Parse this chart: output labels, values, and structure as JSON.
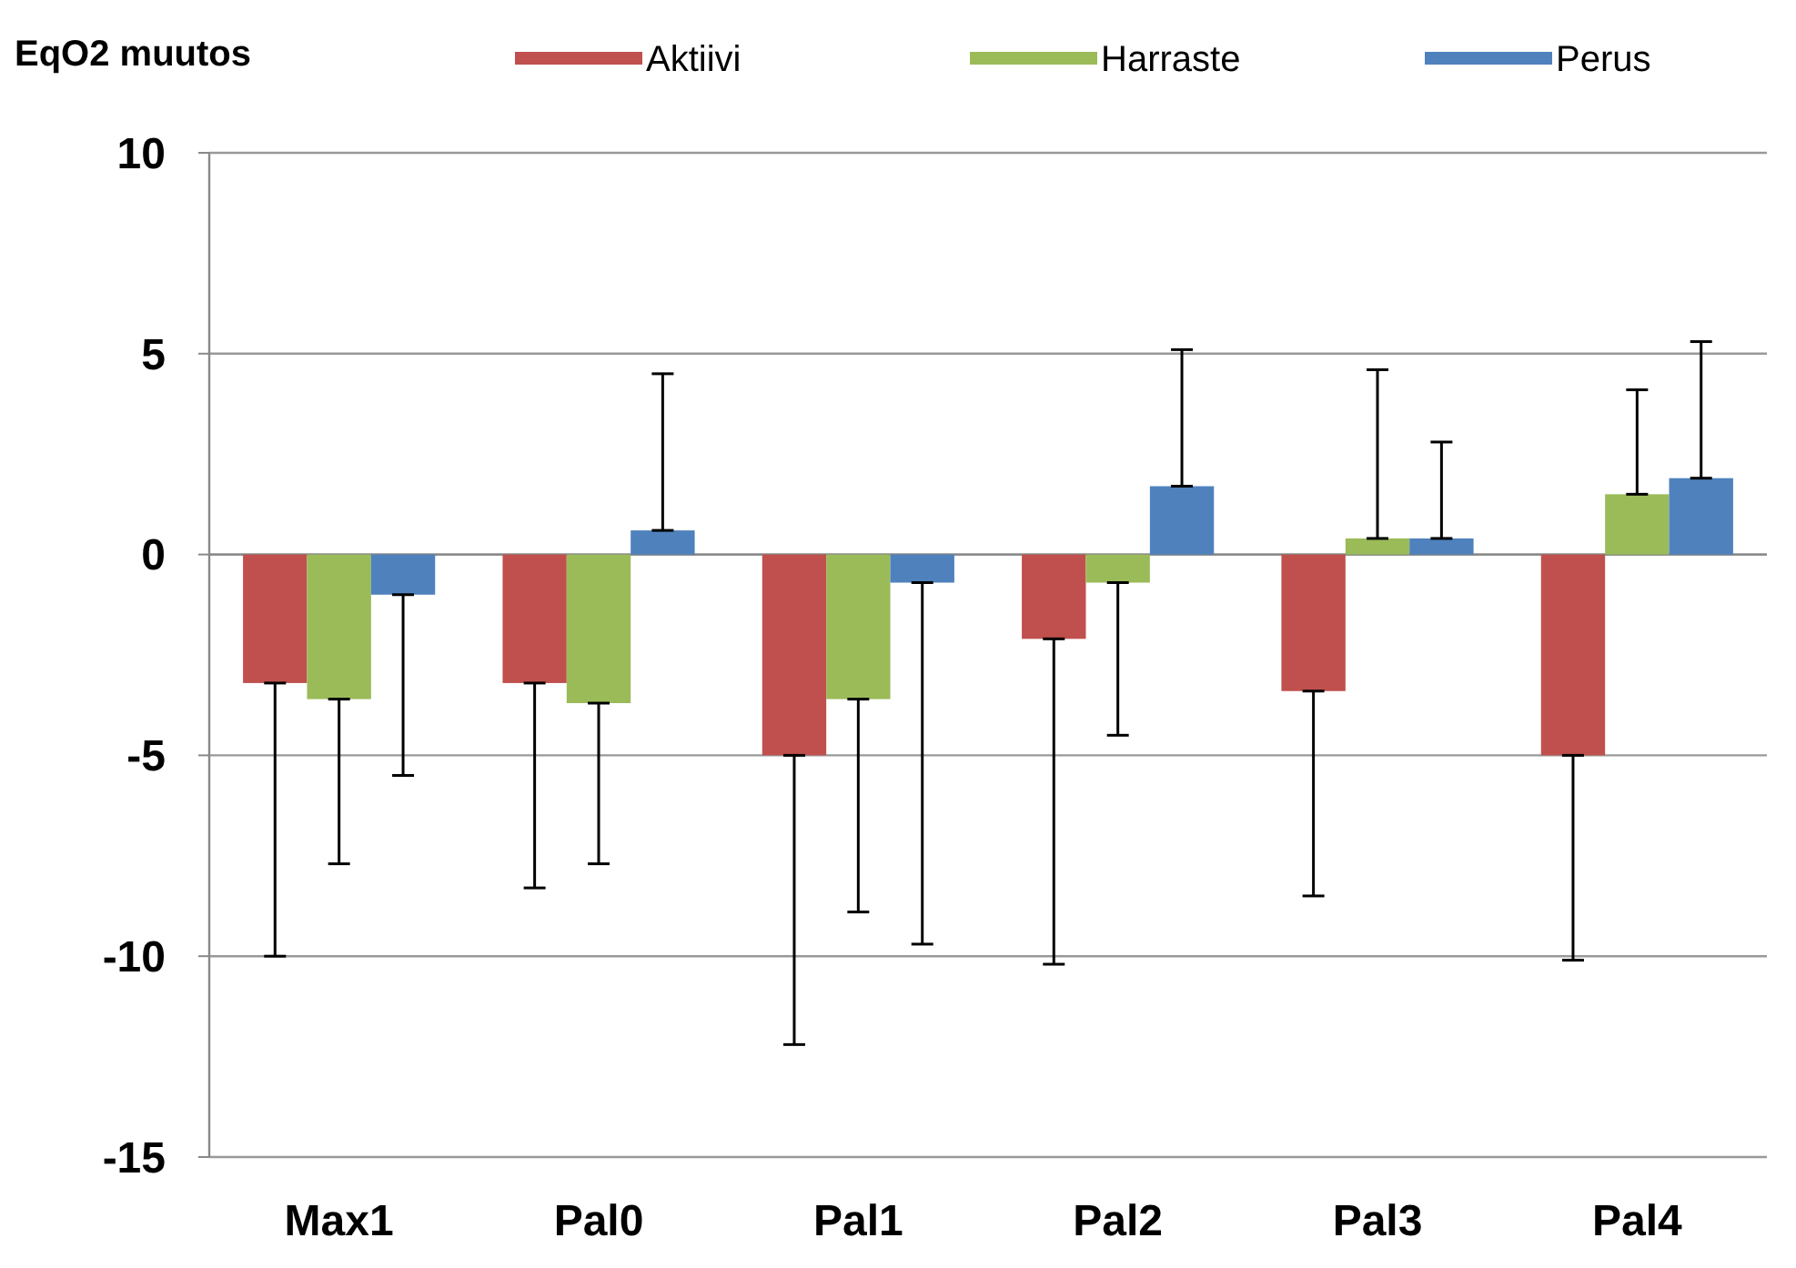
{
  "chart_data": {
    "type": "bar",
    "title": "EqO2 muutos",
    "categories": [
      "Max1",
      "Pal0",
      "Pal1",
      "Pal2",
      "Pal3",
      "Pal4"
    ],
    "series": [
      {
        "name": "Aktiivi",
        "color": "#c0504d",
        "values": [
          -3.2,
          -3.2,
          -5.0,
          -2.1,
          -3.4,
          -5.0
        ],
        "errors": [
          [
            -10.0,
            -3.2
          ],
          [
            -8.3,
            -3.2
          ],
          [
            -12.2,
            -5.0
          ],
          [
            -10.2,
            -2.1
          ],
          [
            -8.5,
            -3.4
          ],
          [
            -10.1,
            -5.0
          ]
        ]
      },
      {
        "name": "Harraste",
        "color": "#9bbb59",
        "values": [
          -3.6,
          -3.7,
          -3.6,
          -0.7,
          0.4,
          1.5
        ],
        "errors": [
          [
            -7.7,
            -3.6
          ],
          [
            -7.7,
            -3.7
          ],
          [
            -8.9,
            -3.6
          ],
          [
            -4.5,
            -0.7
          ],
          [
            0.4,
            4.6
          ],
          [
            1.5,
            4.1
          ]
        ]
      },
      {
        "name": "Perus",
        "color": "#4f81bd",
        "values": [
          -1.0,
          0.6,
          -0.7,
          1.7,
          0.4,
          1.9
        ],
        "errors": [
          [
            -5.5,
            -1.0
          ],
          [
            0.6,
            4.5
          ],
          [
            -9.7,
            -0.7
          ],
          [
            1.7,
            5.1
          ],
          [
            0.4,
            2.8
          ],
          [
            1.9,
            5.3
          ]
        ]
      }
    ],
    "ylim": [
      -15,
      10
    ],
    "yticks": [
      -15,
      -10,
      -5,
      0,
      5,
      10
    ],
    "grid": "y",
    "legend": "top"
  }
}
